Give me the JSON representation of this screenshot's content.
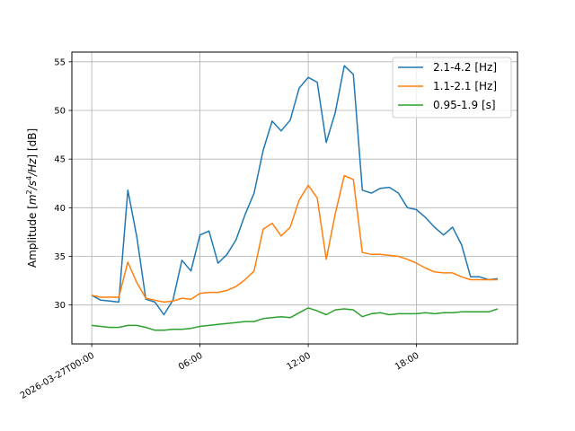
{
  "chart_data": {
    "type": "line",
    "title": "",
    "xlabel": "",
    "ylabel": "Amplitude [m²/s⁴/Hz] [dB]",
    "ylabel_parts": {
      "prefix": "Amplitude [",
      "m": "m",
      "sup2": "2",
      "s": "/s",
      "sup4": "4",
      "hz": "/Hz",
      "suffix": "] [dB]"
    },
    "x_ticks": [
      {
        "hour": 0,
        "label": "2026-03-27T00:00"
      },
      {
        "hour": 6,
        "label": "06:00"
      },
      {
        "hour": 12,
        "label": "12:00"
      },
      {
        "hour": 18,
        "label": "18:00"
      }
    ],
    "y_ticks": [
      {
        "value": 30,
        "label": "30"
      },
      {
        "value": 35,
        "label": "35"
      },
      {
        "value": 40,
        "label": "40"
      },
      {
        "value": 45,
        "label": "45"
      },
      {
        "value": 50,
        "label": "50"
      },
      {
        "value": 55,
        "label": "55"
      }
    ],
    "xlim": [
      -1.1,
      23.6
    ],
    "ylim": [
      26.0,
      56.0
    ],
    "grid": true,
    "legend_position": "upper right",
    "x": [
      0,
      0.5,
      1,
      1.5,
      2,
      2.5,
      3,
      3.5,
      4,
      4.5,
      5,
      5.5,
      6,
      6.5,
      7,
      7.5,
      8,
      8.5,
      9,
      9.5,
      10,
      10.5,
      11,
      11.5,
      12,
      12.5,
      13,
      13.5,
      14,
      14.5,
      15,
      15.5,
      16,
      16.5,
      17,
      17.5,
      18,
      18.5,
      19,
      19.5,
      20,
      20.5,
      21,
      21.5,
      22,
      22.5
    ],
    "series": [
      {
        "name": "2.1-4.2 [Hz]",
        "color": "#1f77b4",
        "values": [
          31.0,
          30.5,
          30.4,
          30.3,
          41.8,
          37.0,
          30.6,
          30.3,
          29.0,
          30.5,
          34.6,
          33.5,
          37.2,
          37.6,
          34.3,
          35.2,
          36.7,
          39.3,
          41.5,
          45.9,
          48.9,
          47.9,
          49.0,
          52.3,
          53.4,
          52.9,
          46.7,
          49.8,
          54.6,
          53.7,
          41.8,
          41.5,
          42.0,
          42.1,
          41.5,
          40.0,
          39.8,
          39.0,
          38.0,
          37.2,
          38.0,
          36.2,
          32.9,
          32.9,
          32.6,
          32.7
        ]
      },
      {
        "name": "1.1-2.1 [Hz]",
        "color": "#ff7f0e",
        "values": [
          31.0,
          30.8,
          30.8,
          30.8,
          34.4,
          32.3,
          30.7,
          30.5,
          30.3,
          30.4,
          30.7,
          30.6,
          31.2,
          31.3,
          31.3,
          31.5,
          31.9,
          32.6,
          33.5,
          37.8,
          38.4,
          37.1,
          38.0,
          40.8,
          42.3,
          41.0,
          34.7,
          39.4,
          43.3,
          42.9,
          35.4,
          35.2,
          35.2,
          35.1,
          35.0,
          34.7,
          34.3,
          33.8,
          33.4,
          33.3,
          33.3,
          32.9,
          32.6,
          32.6,
          32.6,
          32.6
        ]
      },
      {
        "name": "0.95-1.9 [s]",
        "color": "#2ca02c",
        "values": [
          27.9,
          27.8,
          27.7,
          27.7,
          27.9,
          27.9,
          27.7,
          27.4,
          27.4,
          27.5,
          27.5,
          27.6,
          27.8,
          27.9,
          28.0,
          28.1,
          28.2,
          28.3,
          28.3,
          28.6,
          28.7,
          28.8,
          28.7,
          29.2,
          29.7,
          29.4,
          29.0,
          29.5,
          29.6,
          29.5,
          28.8,
          29.1,
          29.2,
          29.0,
          29.1,
          29.1,
          29.1,
          29.2,
          29.1,
          29.2,
          29.2,
          29.3,
          29.3,
          29.3,
          29.3,
          29.6
        ]
      }
    ]
  }
}
